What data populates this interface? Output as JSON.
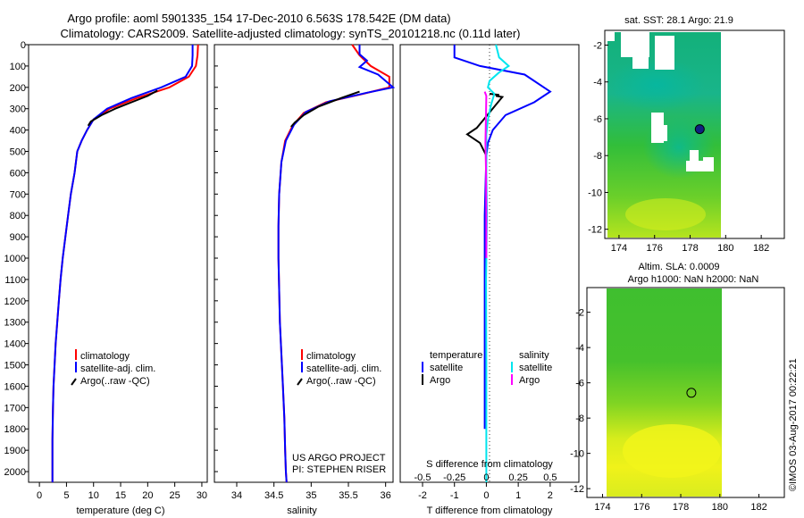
{
  "header": {
    "title_line1": "Argo profile: aoml 5901335_154 17-Dec-2010 6.563S 178.542E (DM data)",
    "title_line2": "Climatology: CARS2009. Satellite-adjusted climatology: synTS_20101218.nc (0.11d later)"
  },
  "side_stamp": "©IMOS 03-Aug-2017 00:22:21",
  "colors": {
    "climatology": "#ff0000",
    "satellite": "#0000ff",
    "argo": "#000000",
    "salinity_satellite": "#00e5ee",
    "salinity_argo": "#ff00ff"
  },
  "chart_data": [
    {
      "type": "line",
      "xlabel": "temperature (deg C)",
      "ylabel": "",
      "xlim": [
        -2,
        31
      ],
      "ylim": [
        2050,
        0
      ],
      "xticks": [
        0,
        5,
        10,
        15,
        20,
        25,
        30
      ],
      "yticks": [
        0,
        100,
        200,
        300,
        400,
        500,
        600,
        700,
        800,
        900,
        1000,
        1100,
        1200,
        1300,
        1400,
        1500,
        1600,
        1700,
        1800,
        1900,
        2000
      ],
      "legend": [
        "climatology",
        "satellite-adj. clim.",
        "Argo(..raw -QC)"
      ],
      "legend_position": "bottom-center",
      "series": [
        {
          "name": "climatology",
          "color": "#ff0000",
          "x": [
            29.3,
            29.2,
            28.9,
            27.6,
            24.0,
            18.0,
            13.0,
            10.0,
            8.8,
            7.8,
            7.0,
            6.5,
            5.8,
            5.3,
            4.8,
            4.3,
            3.9,
            3.6,
            3.3,
            3.0,
            2.8,
            2.6,
            2.5,
            2.4,
            2.4
          ],
          "y": [
            0,
            50,
            100,
            150,
            200,
            250,
            300,
            350,
            400,
            450,
            500,
            600,
            700,
            800,
            900,
            1000,
            1100,
            1200,
            1300,
            1400,
            1500,
            1600,
            1700,
            1850,
            2050
          ]
        },
        {
          "name": "satellite-adj. clim.",
          "color": "#0000ff",
          "x": [
            28.3,
            28.3,
            28.2,
            27.0,
            22.5,
            17.0,
            12.5,
            10.0,
            8.8,
            7.8,
            7.0,
            6.5,
            5.8,
            5.3,
            4.8,
            4.3,
            3.9,
            3.6,
            3.3,
            3.0,
            2.8,
            2.6,
            2.5,
            2.4,
            2.4
          ],
          "y": [
            0,
            50,
            100,
            150,
            200,
            250,
            300,
            350,
            400,
            450,
            500,
            600,
            700,
            800,
            900,
            1000,
            1100,
            1200,
            1300,
            1400,
            1500,
            1600,
            1700,
            1850,
            2050
          ]
        },
        {
          "name": "Argo(..raw -QC)",
          "color": "#000000",
          "x": [
            21.8,
            20.0,
            17.0,
            14.0,
            11.5,
            9.5,
            9.0
          ],
          "y": [
            215,
            240,
            270,
            300,
            330,
            360,
            380
          ]
        }
      ]
    },
    {
      "type": "line",
      "xlabel": "salinity",
      "xlim": [
        33.7,
        36.1
      ],
      "ylim": [
        2050,
        0
      ],
      "xticks": [
        34,
        34.5,
        35,
        35.5,
        36
      ],
      "legend": [
        "climatology",
        "satellite-adj. clim.",
        "Argo(..raw -QC)"
      ],
      "legend_position": "bottom-center",
      "annotations": [
        "US ARGO PROJECT",
        "PI: STEPHEN RISER"
      ],
      "series": [
        {
          "name": "climatology",
          "color": "#ff0000",
          "x": [
            35.55,
            35.65,
            35.8,
            36.05,
            36.05,
            35.7,
            35.2,
            34.9,
            34.75,
            34.65,
            34.6,
            34.57,
            34.56,
            34.56,
            34.57,
            34.58,
            34.6,
            34.62,
            34.64,
            34.65,
            34.66,
            34.67
          ],
          "y": [
            0,
            50,
            100,
            150,
            200,
            230,
            270,
            320,
            380,
            450,
            550,
            700,
            850,
            1000,
            1150,
            1300,
            1450,
            1600,
            1750,
            1900,
            2000,
            2050
          ]
        },
        {
          "name": "satellite-adj. clim.",
          "color": "#0000ff",
          "x": [
            35.65,
            35.65,
            35.75,
            35.65,
            35.9,
            36.1,
            35.75,
            35.25,
            34.93,
            34.77,
            34.66,
            34.6,
            34.57,
            34.56,
            34.56,
            34.57,
            34.58,
            34.6,
            34.62,
            34.64,
            34.65,
            34.66,
            34.67
          ],
          "y": [
            0,
            45,
            75,
            105,
            140,
            200,
            225,
            265,
            315,
            375,
            450,
            550,
            700,
            850,
            1000,
            1150,
            1300,
            1450,
            1600,
            1750,
            1900,
            2000,
            2050
          ]
        },
        {
          "name": "Argo(..raw -QC)",
          "color": "#000000",
          "x": [
            35.65,
            35.4,
            35.1,
            34.9,
            34.78,
            34.73
          ],
          "y": [
            220,
            250,
            290,
            330,
            365,
            385
          ]
        }
      ]
    },
    {
      "type": "line",
      "xlabel": "T difference from climatology",
      "xlabel_top": "S difference from climatology",
      "xlim": [
        -2.7,
        2.9
      ],
      "ylim": [
        2050,
        0
      ],
      "xticks": [
        -2,
        -1,
        0,
        1,
        2
      ],
      "xticks_top": [
        "-0.5",
        "-0.25",
        "0",
        "0.25",
        "0.5"
      ],
      "legend": [
        "temperature",
        "satellite",
        "Argo",
        "salinity",
        "satellite",
        "Argo"
      ],
      "legend_position": "bottom-center",
      "series": [
        {
          "name": "satellite",
          "quantity": "temperature",
          "color": "#0000ff",
          "x": [
            -1.0,
            -1.0,
            -0.2,
            1.2,
            2.0,
            1.5,
            0.6,
            0.2,
            0.05,
            0.0,
            -0.05,
            -0.05,
            -0.05,
            -0.05
          ],
          "y": [
            0,
            60,
            100,
            140,
            220,
            270,
            330,
            400,
            460,
            520,
            800,
            1200,
            1500,
            1800
          ]
        },
        {
          "name": "Argo",
          "quantity": "temperature",
          "color": "#000000",
          "x": [
            0.1,
            0.4,
            0.3,
            0.5,
            -0.3,
            -0.6,
            -0.2,
            0.0
          ],
          "y": [
            230,
            235,
            240,
            245,
            390,
            420,
            460,
            520
          ]
        },
        {
          "name": "satellite",
          "quantity": "salinity",
          "color": "#00e5ee",
          "x": [
            0.3,
            0.4,
            0.7,
            0.4,
            0.1,
            0.05,
            0.25,
            0.15,
            0.05,
            0.0,
            0.0,
            0.02,
            -0.01,
            0.0,
            0.0
          ],
          "y": [
            0,
            60,
            100,
            130,
            170,
            200,
            230,
            280,
            350,
            420,
            600,
            800,
            1100,
            1500,
            2050
          ]
        },
        {
          "name": "Argo",
          "quantity": "salinity",
          "color": "#ff00ff",
          "x": [
            -0.05,
            0.0,
            -0.02,
            -0.03,
            -0.01,
            0.0,
            0.0
          ],
          "y": [
            220,
            240,
            400,
            460,
            600,
            800,
            1000
          ]
        }
      ]
    },
    {
      "type": "heatmap",
      "title": "sat. SST: 28.1  Argo: 21.9",
      "xlim": [
        173.2,
        183.3
      ],
      "ylim": [
        -12.5,
        -1.2
      ],
      "xticks": [
        174,
        176,
        178,
        180,
        182
      ],
      "yticks": [
        -2,
        -4,
        -6,
        -8,
        -10,
        -12
      ],
      "marker": {
        "lon": 178.542,
        "lat": -6.563
      }
    },
    {
      "type": "heatmap",
      "title": "Altim. SLA: 0.0009",
      "subtitle": "Argo h1000: NaN  h2000: NaN",
      "xlim": [
        173.2,
        183.3
      ],
      "ylim": [
        -12.5,
        -0.6
      ],
      "xticks": [
        174,
        176,
        178,
        180,
        182
      ],
      "yticks": [
        -2,
        -4,
        -6,
        -8,
        -10,
        -12
      ],
      "marker": {
        "lon": 178.542,
        "lat": -6.563
      }
    }
  ]
}
